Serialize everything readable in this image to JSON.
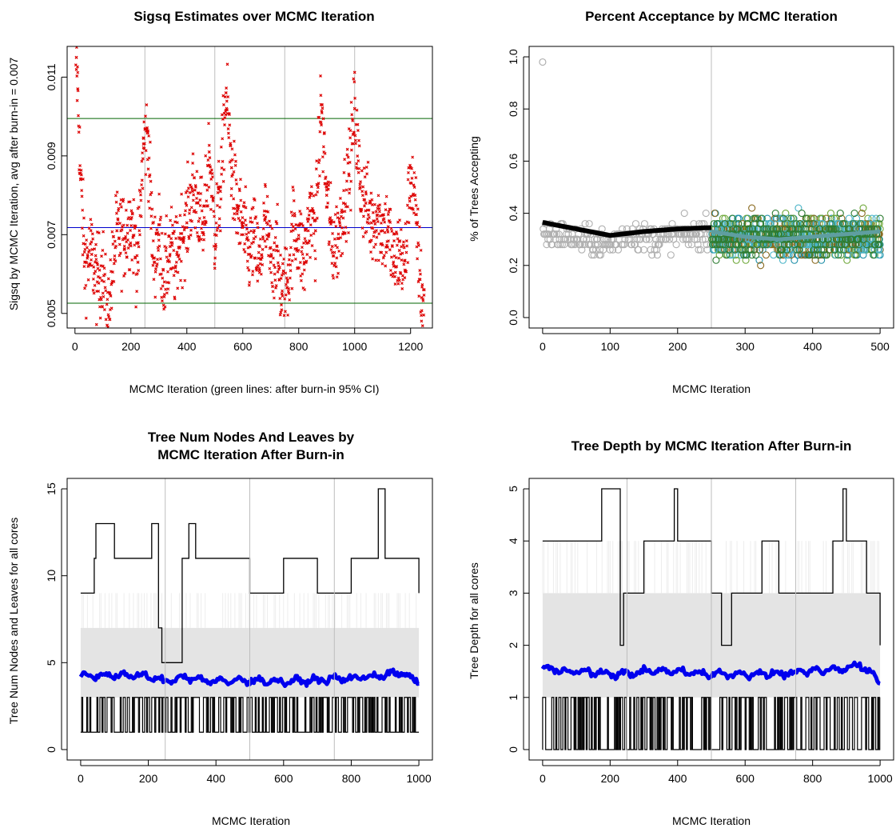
{
  "chart_data": [
    {
      "type": "scatter",
      "title": "Sigsq Estimates over MCMC Iteration",
      "xlabel": "MCMC Iteration (green lines: after burn-in 95% CI)",
      "ylabel": "Sigsq by MCMC Iteration, avg after burn-in = 0.007",
      "xlim": [
        -28,
        1278
      ],
      "ylim": [
        0.00463,
        0.01178
      ],
      "xticks": [
        0,
        200,
        400,
        600,
        800,
        1000,
        1200
      ],
      "xtick_labels": [
        "0",
        "200",
        "400",
        "600",
        "800",
        "1000",
        "1200"
      ],
      "yticks": [
        0.005,
        0.007,
        0.009,
        0.011
      ],
      "ytick_labels": [
        "0.005",
        "0.007",
        "0.009",
        "0.011"
      ],
      "vlines": [
        250,
        500,
        750,
        1000
      ],
      "hlines": [
        {
          "y": 0.00995,
          "color": "#006400",
          "label": "after burn-in 95% CI upper"
        },
        {
          "y": 0.00718,
          "color": "#0000cc",
          "label": "avg after burn-in"
        },
        {
          "y": 0.00526,
          "color": "#006400",
          "label": "after burn-in 95% CI lower"
        }
      ],
      "colors": {
        "points": "#dd0000"
      },
      "series": [
        {
          "x": [
            5,
            10,
            20,
            35,
            60,
            80,
            100,
            115,
            125,
            150,
            175,
            200,
            225,
            245,
            260,
            280,
            300,
            320,
            340,
            360,
            375,
            400,
            420,
            440,
            460,
            480,
            500,
            520,
            540,
            560,
            580,
            600,
            620,
            640,
            660,
            680,
            700,
            720,
            740,
            760,
            780,
            800,
            820,
            840,
            860,
            880,
            900,
            920,
            940,
            960,
            980,
            1000,
            1020,
            1040,
            1060,
            1080,
            1100,
            1120,
            1140,
            1160,
            1180,
            1200,
            1220,
            1240
          ],
          "values": [
            0.0115,
            0.0107,
            0.0084,
            0.0063,
            0.0065,
            0.0058,
            0.0062,
            0.0047,
            0.0055,
            0.0071,
            0.0069,
            0.0074,
            0.0063,
            0.0093,
            0.0096,
            0.0064,
            0.007,
            0.0058,
            0.0067,
            0.0062,
            0.0069,
            0.0073,
            0.0081,
            0.0078,
            0.007,
            0.0091,
            0.007,
            0.0081,
            0.0106,
            0.0087,
            0.0076,
            0.0072,
            0.0065,
            0.0069,
            0.0061,
            0.0074,
            0.0063,
            0.0066,
            0.0055,
            0.0058,
            0.0072,
            0.0069,
            0.0063,
            0.0076,
            0.0071,
            0.0103,
            0.008,
            0.0067,
            0.0069,
            0.0078,
            0.0085,
            0.0102,
            0.0082,
            0.0078,
            0.0073,
            0.0075,
            0.0071,
            0.0072,
            0.0062,
            0.0066,
            0.0061,
            0.0087,
            0.0073,
            0.0054
          ]
        }
      ]
    },
    {
      "type": "scatter",
      "title": "Percent Acceptance by MCMC Iteration",
      "xlabel": "MCMC Iteration",
      "ylabel": "% of Trees Accepting",
      "xlim": [
        -20,
        520
      ],
      "ylim": [
        -0.04,
        1.04
      ],
      "xticks": [
        0,
        100,
        200,
        300,
        400,
        500
      ],
      "xtick_labels": [
        "0",
        "100",
        "200",
        "300",
        "400",
        "500"
      ],
      "yticks": [
        0.0,
        0.2,
        0.4,
        0.6,
        0.8,
        1.0
      ],
      "ytick_labels": [
        "0.0",
        "0.2",
        "0.4",
        "0.6",
        "0.8",
        "1.0"
      ],
      "vlines": [
        250
      ],
      "colors": {
        "burnin_points": "#b0b0b0",
        "after_points": [
          "#1e8fa8",
          "#6fa83a",
          "#8a6a20",
          "#4bb4c8",
          "#2e7d32"
        ],
        "smoother_burnin": "#000000",
        "smoother_after": "#5f9ea0"
      },
      "series": [
        {
          "name": "",
          "x": [
            0,
            25,
            50,
            75,
            100,
            125,
            150,
            175,
            200,
            225,
            250
          ],
          "values": [
            0.98,
            0.32,
            0.3,
            0.29,
            0.28,
            0.33,
            0.31,
            0.3,
            0.32,
            0.31,
            0.34
          ]
        },
        {
          "name": "",
          "x": [
            0,
            50,
            100,
            150,
            200,
            250
          ],
          "values": [
            0.365,
            0.34,
            0.315,
            0.33,
            0.34,
            0.345
          ]
        },
        {
          "name": "",
          "x": [
            250,
            300,
            350,
            400,
            450,
            500
          ],
          "values": [
            0.33,
            0.31,
            0.3,
            0.31,
            0.32,
            0.33
          ]
        }
      ]
    },
    {
      "type": "line",
      "title": "Tree Num Nodes And Leaves by\nMCMC Iteration After Burn-in",
      "xlabel": "MCMC Iteration",
      "ylabel": "Tree Num Nodes and Leaves for all cores",
      "xlim": [
        -40,
        1040
      ],
      "ylim": [
        -0.6,
        15.6
      ],
      "xticks": [
        0,
        200,
        400,
        600,
        800,
        1000
      ],
      "xtick_labels": [
        "0",
        "200",
        "400",
        "600",
        "800",
        "1000"
      ],
      "yticks": [
        0,
        5,
        10,
        15
      ],
      "ytick_labels": [
        "0",
        "5",
        "10",
        "15"
      ],
      "vlines": [
        250,
        500,
        750
      ],
      "colors": {
        "band": "#e4e4e4",
        "max_line": "#000000",
        "min_line": "#000000",
        "avg_line": "#0000ee"
      },
      "band": {
        "lower": 3,
        "upper": 7
      },
      "series": [
        {
          "name": "",
          "x": [
            0,
            40,
            45,
            100,
            150,
            210,
            230,
            240,
            300,
            320,
            340,
            400,
            500,
            600,
            700,
            800,
            860,
            880,
            900,
            1000
          ],
          "values": [
            9,
            11,
            13,
            11,
            11,
            13,
            7,
            5,
            11,
            13,
            11,
            11,
            9,
            11,
            9,
            11,
            11,
            15,
            11,
            9
          ]
        },
        {
          "name": "",
          "x": [
            0,
            1000
          ],
          "values": [
            1,
            1
          ]
        },
        {
          "name": "",
          "x": [
            0,
            100,
            200,
            250,
            300,
            400,
            500,
            600,
            700,
            800,
            900,
            950,
            1000
          ],
          "values": [
            4.2,
            4.3,
            4.2,
            3.9,
            4.2,
            3.9,
            4.0,
            3.9,
            4.0,
            4.1,
            4.3,
            4.4,
            3.8
          ]
        }
      ]
    },
    {
      "type": "line",
      "title": "Tree Depth by MCMC Iteration After Burn-in",
      "xlabel": "MCMC Iteration",
      "ylabel": "Tree Depth for all cores",
      "xlim": [
        -40,
        1040
      ],
      "ylim": [
        -0.2,
        5.2
      ],
      "xticks": [
        0,
        200,
        400,
        600,
        800,
        1000
      ],
      "xtick_labels": [
        "0",
        "200",
        "400",
        "600",
        "800",
        "1000"
      ],
      "yticks": [
        0,
        1,
        2,
        3,
        4,
        5
      ],
      "ytick_labels": [
        "0",
        "1",
        "2",
        "3",
        "4",
        "5"
      ],
      "vlines": [
        250,
        500,
        750
      ],
      "colors": {
        "band": "#e4e4e4",
        "max_line": "#000000",
        "min_line": "#000000",
        "avg_line": "#0000ee"
      },
      "band": {
        "lower": 1,
        "upper": 3
      },
      "series": [
        {
          "name": "",
          "x": [
            0,
            170,
            175,
            230,
            240,
            300,
            390,
            400,
            500,
            530,
            560,
            650,
            700,
            860,
            890,
            900,
            960,
            1000
          ],
          "values": [
            4,
            4,
            5,
            2,
            3,
            4,
            5,
            4,
            3,
            2,
            3,
            4,
            3,
            4,
            5,
            4,
            3,
            2
          ]
        },
        {
          "name": "",
          "x": [
            0,
            1000
          ],
          "values": [
            0,
            0
          ]
        },
        {
          "name": "",
          "x": [
            0,
            100,
            200,
            250,
            300,
            400,
            500,
            600,
            700,
            800,
            900,
            940,
            1000
          ],
          "values": [
            1.55,
            1.5,
            1.45,
            1.45,
            1.5,
            1.5,
            1.45,
            1.45,
            1.45,
            1.5,
            1.55,
            1.65,
            1.3
          ]
        }
      ]
    }
  ]
}
